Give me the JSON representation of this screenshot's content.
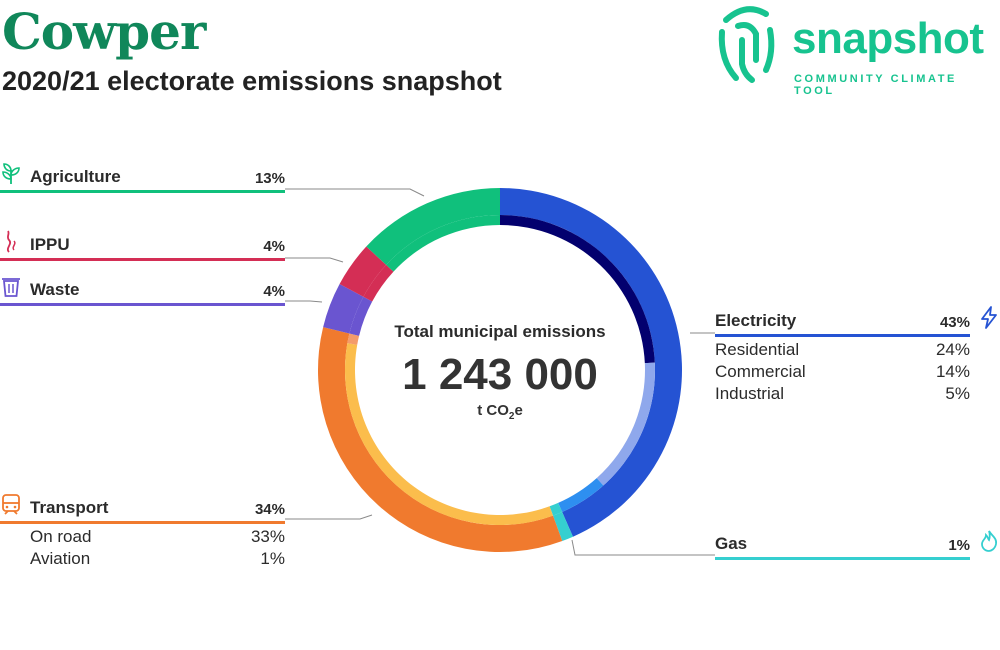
{
  "header": {
    "title": "Cowper",
    "subtitle": "2020/21 electorate emissions snapshot"
  },
  "logo": {
    "wordmark": "snapshot",
    "tagline": "COMMUNITY CLIMATE TOOL",
    "icon": "fingerprint-icon",
    "color": "#17c38f"
  },
  "center": {
    "label": "Total municipal emissions",
    "value": "1 243 000",
    "unit_prefix": "t CO",
    "unit_subscript": "2",
    "unit_suffix": "e"
  },
  "chart_data": {
    "type": "pie",
    "style": "donut",
    "total": 1243000,
    "categories": [
      {
        "name": "Electricity",
        "pct_label": "43%",
        "value": 43,
        "color": "#2553d3",
        "icon": "lightning-icon",
        "sub": [
          {
            "name": "Residential",
            "pct_label": "24%",
            "value": 24,
            "color": "#03006e"
          },
          {
            "name": "Commercial",
            "pct_label": "14%",
            "value": 14,
            "color": "#8fa8ec"
          },
          {
            "name": "Industrial",
            "pct_label": "5%",
            "value": 5,
            "color": "#2e8ff0"
          }
        ]
      },
      {
        "name": "Gas",
        "pct_label": "1%",
        "value": 1,
        "color": "#35cfd0",
        "icon": "flame-icon",
        "sub": []
      },
      {
        "name": "Transport",
        "pct_label": "34%",
        "value": 34,
        "color": "#f07a2e",
        "icon": "train-icon",
        "sub": [
          {
            "name": "On road",
            "pct_label": "33%",
            "value": 33,
            "color": "#fbbd4c"
          },
          {
            "name": "Aviation",
            "pct_label": "1%",
            "value": 1,
            "color": "#f49b6a"
          }
        ]
      },
      {
        "name": "Waste",
        "pct_label": "4%",
        "value": 4,
        "color": "#6a55d0",
        "icon": "bin-icon",
        "sub": []
      },
      {
        "name": "IPPU",
        "pct_label": "4%",
        "value": 4,
        "color": "#d42e55",
        "icon": "smoke-icon",
        "sub": []
      },
      {
        "name": "Agriculture",
        "pct_label": "13%",
        "value": 13,
        "color": "#10c07c",
        "icon": "plant-icon",
        "sub": []
      }
    ]
  }
}
